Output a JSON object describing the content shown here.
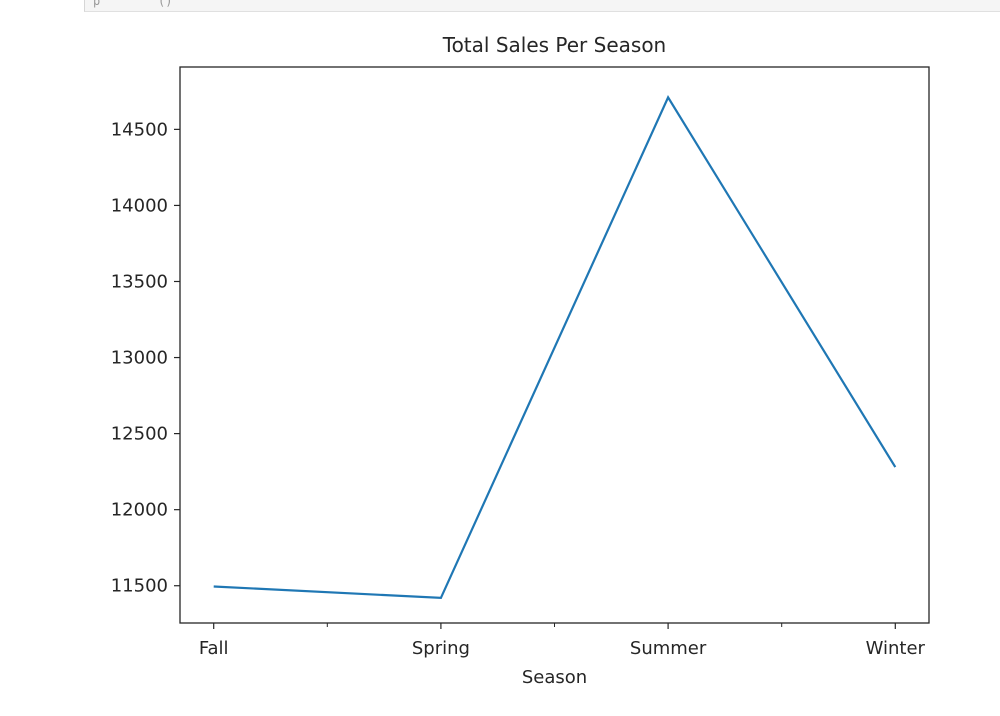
{
  "cell_output_strip": "p        ()",
  "chart_data": {
    "type": "line",
    "title": "Total Sales Per Season",
    "xlabel": "Season",
    "ylabel": "",
    "categories": [
      "Fall",
      "Spring",
      "Summer",
      "Winter"
    ],
    "x_tick_labels": [
      "Fall",
      "Spring",
      "Summer",
      "Winter"
    ],
    "series": [
      {
        "values": [
          11495,
          11420,
          14710,
          12280
        ],
        "color": "#1f77b4"
      }
    ],
    "ylim": [
      11255,
      14910
    ],
    "y_ticks": [
      11500,
      12000,
      12500,
      13000,
      13500,
      14000,
      14500
    ],
    "y_tick_labels": [
      "11500",
      "12000",
      "12500",
      "13000",
      "13500",
      "14000",
      "14500"
    ],
    "grid": false,
    "legend": "none"
  }
}
